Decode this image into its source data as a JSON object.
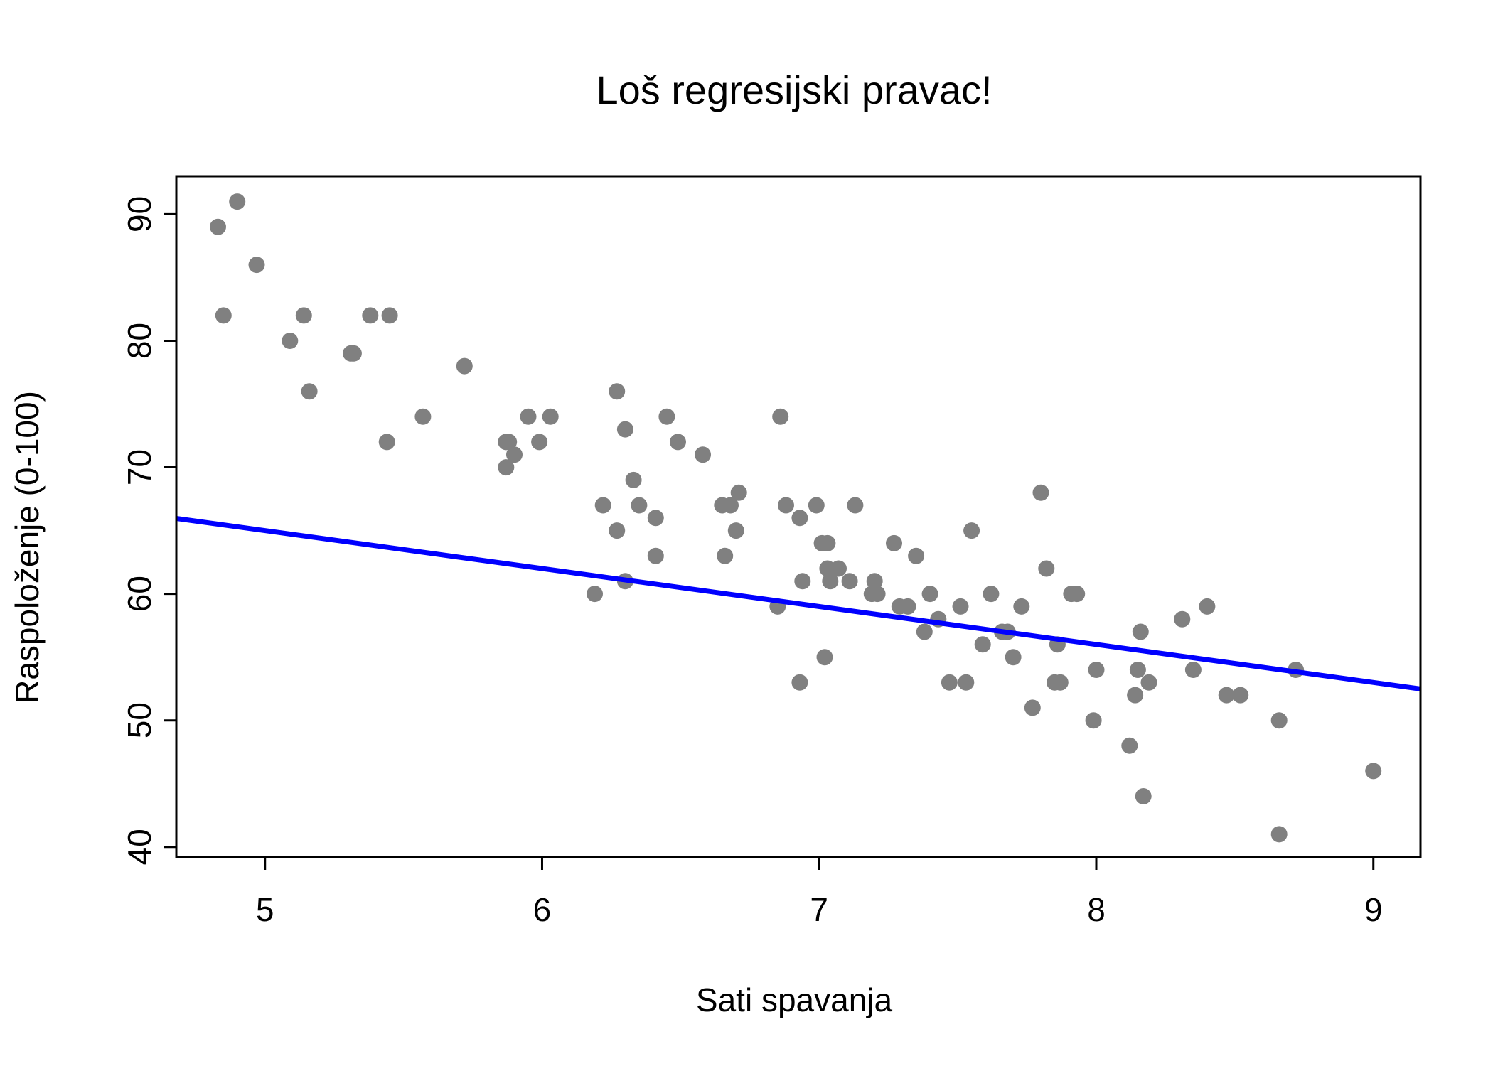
{
  "chart_data": {
    "type": "scatter",
    "title": "Loš regresijski pravac!",
    "xlabel": "Sati spavanja",
    "ylabel": "Raspoloženje (0-100)",
    "xlim": [
      4.68,
      9.17
    ],
    "ylim": [
      39.2,
      93.0
    ],
    "x_ticks": [
      5,
      6,
      7,
      8,
      9
    ],
    "y_ticks": [
      40,
      50,
      60,
      70,
      80,
      90
    ],
    "x_tick_labels": [
      "5",
      "6",
      "7",
      "8",
      "9"
    ],
    "y_tick_labels": [
      "40",
      "50",
      "60",
      "70",
      "80",
      "90"
    ],
    "grid": false,
    "point_color": "#808080",
    "line_color": "#0000ff",
    "regression_line": {
      "intercept": 80.0,
      "slope": -3.0
    },
    "points": [
      [
        4.83,
        89
      ],
      [
        4.9,
        91
      ],
      [
        4.85,
        82
      ],
      [
        4.97,
        86
      ],
      [
        5.09,
        80
      ],
      [
        5.14,
        82
      ],
      [
        5.16,
        76
      ],
      [
        5.31,
        79
      ],
      [
        5.32,
        79
      ],
      [
        5.38,
        82
      ],
      [
        5.45,
        82
      ],
      [
        5.44,
        72
      ],
      [
        5.57,
        74
      ],
      [
        5.72,
        78
      ],
      [
        5.87,
        72
      ],
      [
        5.88,
        72
      ],
      [
        5.87,
        70
      ],
      [
        5.9,
        71
      ],
      [
        5.95,
        74
      ],
      [
        5.99,
        72
      ],
      [
        6.03,
        74
      ],
      [
        6.19,
        60
      ],
      [
        6.22,
        67
      ],
      [
        6.27,
        76
      ],
      [
        6.27,
        65
      ],
      [
        6.3,
        73
      ],
      [
        6.3,
        61
      ],
      [
        6.33,
        69
      ],
      [
        6.35,
        67
      ],
      [
        6.41,
        66
      ],
      [
        6.41,
        63
      ],
      [
        6.45,
        74
      ],
      [
        6.49,
        72
      ],
      [
        6.58,
        71
      ],
      [
        6.65,
        67
      ],
      [
        6.68,
        67
      ],
      [
        6.66,
        63
      ],
      [
        6.7,
        65
      ],
      [
        6.71,
        68
      ],
      [
        6.85,
        59
      ],
      [
        6.86,
        74
      ],
      [
        6.88,
        67
      ],
      [
        6.93,
        66
      ],
      [
        6.94,
        61
      ],
      [
        6.93,
        53
      ],
      [
        6.99,
        67
      ],
      [
        7.01,
        64
      ],
      [
        7.03,
        64
      ],
      [
        7.03,
        62
      ],
      [
        7.04,
        61
      ],
      [
        7.02,
        55
      ],
      [
        7.07,
        62
      ],
      [
        7.11,
        61
      ],
      [
        7.13,
        67
      ],
      [
        7.19,
        60
      ],
      [
        7.2,
        61
      ],
      [
        7.21,
        60
      ],
      [
        7.27,
        64
      ],
      [
        7.29,
        59
      ],
      [
        7.32,
        59
      ],
      [
        7.35,
        63
      ],
      [
        7.38,
        57
      ],
      [
        7.4,
        60
      ],
      [
        7.43,
        58
      ],
      [
        7.47,
        53
      ],
      [
        7.51,
        59
      ],
      [
        7.53,
        53
      ],
      [
        7.55,
        65
      ],
      [
        7.59,
        56
      ],
      [
        7.62,
        60
      ],
      [
        7.66,
        57
      ],
      [
        7.68,
        57
      ],
      [
        7.7,
        55
      ],
      [
        7.73,
        59
      ],
      [
        7.77,
        51
      ],
      [
        7.8,
        68
      ],
      [
        7.82,
        62
      ],
      [
        7.85,
        53
      ],
      [
        7.86,
        56
      ],
      [
        7.87,
        53
      ],
      [
        7.91,
        60
      ],
      [
        7.93,
        60
      ],
      [
        7.99,
        50
      ],
      [
        8.0,
        54
      ],
      [
        8.12,
        48
      ],
      [
        8.14,
        52
      ],
      [
        8.15,
        54
      ],
      [
        8.16,
        57
      ],
      [
        8.17,
        44
      ],
      [
        8.19,
        53
      ],
      [
        8.31,
        58
      ],
      [
        8.35,
        54
      ],
      [
        8.4,
        59
      ],
      [
        8.47,
        52
      ],
      [
        8.52,
        52
      ],
      [
        8.66,
        50
      ],
      [
        8.66,
        41
      ],
      [
        8.72,
        54
      ],
      [
        9.0,
        46
      ]
    ]
  }
}
